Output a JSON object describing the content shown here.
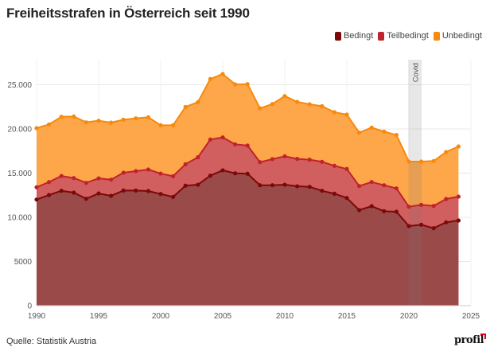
{
  "chart_data": {
    "type": "area",
    "stacked": true,
    "title": "Freiheitsstrafen in Österreich seit 1990",
    "xlabel": "",
    "ylabel": "",
    "x": [
      1990,
      1991,
      1992,
      1993,
      1994,
      1995,
      1996,
      1997,
      1998,
      1999,
      2000,
      2001,
      2002,
      2003,
      2004,
      2005,
      2006,
      2007,
      2008,
      2009,
      2010,
      2011,
      2012,
      2013,
      2014,
      2015,
      2016,
      2017,
      2018,
      2019,
      2020,
      2021,
      2022,
      2023,
      2024
    ],
    "series": [
      {
        "name": "Bedingt",
        "color": "#7a0a0a",
        "fill": "#9b4a4a",
        "cumulative": [
          12010,
          12520,
          13000,
          12790,
          12100,
          12700,
          12430,
          13030,
          13030,
          12970,
          12640,
          12310,
          13580,
          13690,
          14710,
          15320,
          14980,
          14930,
          13630,
          13630,
          13690,
          13510,
          13450,
          13000,
          12670,
          12190,
          10810,
          11260,
          10690,
          10630,
          9010,
          9160,
          8770,
          9430,
          9640
        ]
      },
      {
        "name": "Teilbedingt",
        "color": "#c0232b",
        "fill": "#d25f5f",
        "cumulative": [
          13400,
          13990,
          14680,
          14440,
          13900,
          14410,
          14260,
          15050,
          15230,
          15410,
          14950,
          14650,
          16010,
          16790,
          18800,
          19040,
          18260,
          18120,
          16240,
          16580,
          16910,
          16610,
          16520,
          16280,
          15830,
          15470,
          13540,
          13990,
          13630,
          13270,
          11200,
          11410,
          11290,
          12070,
          12340
        ]
      },
      {
        "name": "Unbedingt",
        "color": "#f7890c",
        "fill": "#fda74a",
        "cumulative": [
          20090,
          20510,
          21380,
          21410,
          20750,
          20930,
          20720,
          21050,
          21200,
          21320,
          20420,
          20420,
          22490,
          23030,
          25650,
          26220,
          25050,
          25070,
          22340,
          22820,
          23720,
          23060,
          22790,
          22580,
          21890,
          21620,
          19580,
          20150,
          19700,
          19310,
          16310,
          16310,
          16370,
          17390,
          18020
        ]
      }
    ],
    "xlim": [
      1990,
      2025
    ],
    "ylim": [
      0,
      27500
    ],
    "x_ticks": [
      1990,
      1995,
      2000,
      2005,
      2010,
      2015,
      2020,
      2025
    ],
    "x_tick_labels": [
      "1990",
      "1995",
      "2000",
      "2005",
      "2010",
      "2015",
      "2020",
      "2025"
    ],
    "y_ticks": [
      0,
      5000,
      10000,
      15000,
      20000,
      25000
    ],
    "y_tick_labels": [
      "0",
      "5000",
      "10.000",
      "15.000",
      "20.000",
      "25.000"
    ],
    "grid": true,
    "legend_position": "top-right",
    "annotations": [
      {
        "label": "Covid",
        "x_start": 2020,
        "x_end": 2021,
        "type": "band"
      }
    ]
  },
  "legend": [
    {
      "label": "Bedingt",
      "color": "#7a0a0a"
    },
    {
      "label": "Teilbedingt",
      "color": "#c0232b"
    },
    {
      "label": "Unbedingt",
      "color": "#f7890c"
    }
  ],
  "source": "Quelle: Statistik Austria",
  "logo": "profil"
}
